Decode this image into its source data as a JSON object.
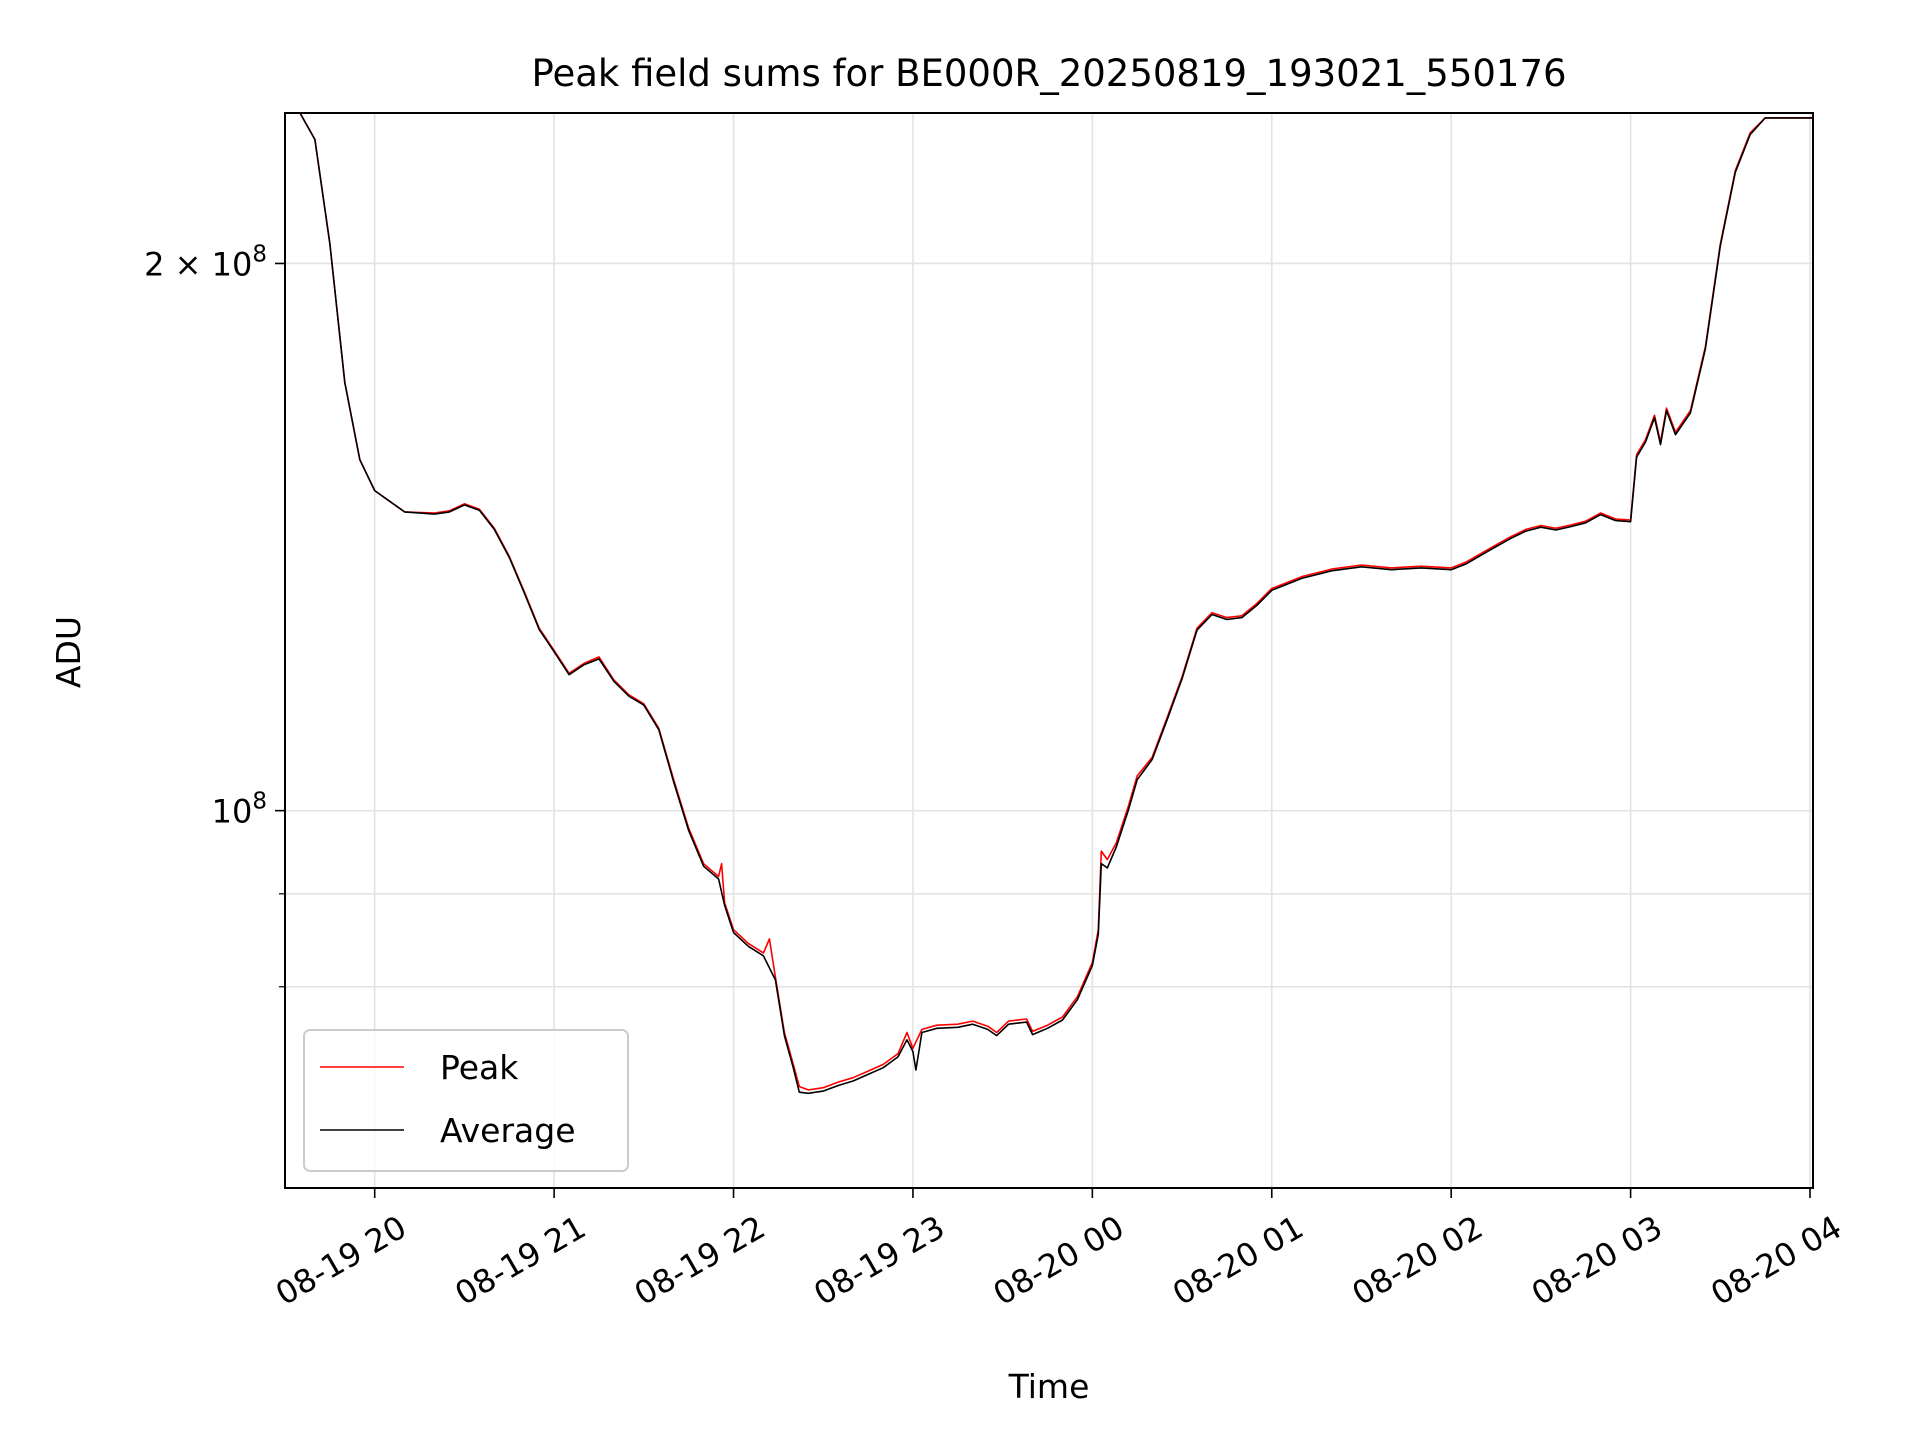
{
  "chart_data": {
    "type": "line",
    "title": "Peak field sums for BE000R_20250819_193021_550176",
    "xlabel": "Time",
    "ylabel": "ADU",
    "yscale": "log",
    "ylim": [
      62000000,
      242000000
    ],
    "xlim": [
      "2025-08-19 19:30",
      "2025-08-20 04:01"
    ],
    "grid": true,
    "legend_position": "lower-left",
    "x_ticks": [
      "08-19 20",
      "08-19 21",
      "08-19 22",
      "08-19 23",
      "08-20 00",
      "08-20 01",
      "08-20 02",
      "08-20 03",
      "08-20 04"
    ],
    "y_ticks": [
      {
        "value": 100000000,
        "base": "10",
        "exp": "8"
      },
      {
        "value": 200000000,
        "mantissa": "2 × ",
        "base": "10",
        "exp": "8"
      }
    ],
    "y_minor_gridlines": [
      80000000,
      90000000
    ],
    "series": [
      {
        "name": "Peak",
        "color": "#ff0000",
        "points": [
          [
            "2025-08-19 19:30",
            242000000
          ],
          [
            "2025-08-19 19:35",
            242000000
          ],
          [
            "2025-08-19 19:40",
            234000000
          ],
          [
            "2025-08-19 19:45",
            205000000
          ],
          [
            "2025-08-19 19:50",
            172000000
          ],
          [
            "2025-08-19 19:55",
            156000000
          ],
          [
            "2025-08-19 20:00",
            150000000
          ],
          [
            "2025-08-19 20:10",
            146000000
          ],
          [
            "2025-08-19 20:20",
            145800000
          ],
          [
            "2025-08-19 20:25",
            146200000
          ],
          [
            "2025-08-19 20:30",
            147500000
          ],
          [
            "2025-08-19 20:35",
            146500000
          ],
          [
            "2025-08-19 20:40",
            143000000
          ],
          [
            "2025-08-19 20:45",
            138000000
          ],
          [
            "2025-08-19 20:50",
            132000000
          ],
          [
            "2025-08-19 20:55",
            126000000
          ],
          [
            "2025-08-19 21:00",
            122500000
          ],
          [
            "2025-08-19 21:05",
            119000000
          ],
          [
            "2025-08-19 21:10",
            120500000
          ],
          [
            "2025-08-19 21:15",
            121500000
          ],
          [
            "2025-08-19 21:20",
            118000000
          ],
          [
            "2025-08-19 21:25",
            115800000
          ],
          [
            "2025-08-19 21:30",
            114500000
          ],
          [
            "2025-08-19 21:35",
            111000000
          ],
          [
            "2025-08-19 21:40",
            104000000
          ],
          [
            "2025-08-19 21:45",
            97800000
          ],
          [
            "2025-08-19 21:50",
            93500000
          ],
          [
            "2025-08-19 21:55",
            92000000
          ],
          [
            "2025-08-19 21:56",
            93500000
          ],
          [
            "2025-08-19 21:57",
            89000000
          ],
          [
            "2025-08-19 22:00",
            86000000
          ],
          [
            "2025-08-19 22:05",
            84500000
          ],
          [
            "2025-08-19 22:10",
            83500000
          ],
          [
            "2025-08-19 22:12",
            85000000
          ],
          [
            "2025-08-19 22:14",
            81000000
          ],
          [
            "2025-08-19 22:17",
            75500000
          ],
          [
            "2025-08-19 22:20",
            72500000
          ],
          [
            "2025-08-19 22:22",
            70500000
          ],
          [
            "2025-08-19 22:25",
            70200000
          ],
          [
            "2025-08-19 22:30",
            70400000
          ],
          [
            "2025-08-19 22:35",
            70900000
          ],
          [
            "2025-08-19 22:40",
            71300000
          ],
          [
            "2025-08-19 22:45",
            71900000
          ],
          [
            "2025-08-19 22:50",
            72500000
          ],
          [
            "2025-08-19 22:55",
            73500000
          ],
          [
            "2025-08-19 22:58",
            75500000
          ],
          [
            "2025-08-19 23:00",
            74000000
          ],
          [
            "2025-08-19 23:03",
            75800000
          ],
          [
            "2025-08-19 23:08",
            76200000
          ],
          [
            "2025-08-19 23:15",
            76300000
          ],
          [
            "2025-08-19 23:20",
            76600000
          ],
          [
            "2025-08-19 23:25",
            76100000
          ],
          [
            "2025-08-19 23:28",
            75500000
          ],
          [
            "2025-08-19 23:32",
            76600000
          ],
          [
            "2025-08-19 23:38",
            76800000
          ],
          [
            "2025-08-19 23:40",
            75600000
          ],
          [
            "2025-08-19 23:45",
            76200000
          ],
          [
            "2025-08-19 23:50",
            77000000
          ],
          [
            "2025-08-19 23:55",
            79000000
          ],
          [
            "2025-08-20 00:00",
            82500000
          ],
          [
            "2025-08-20 00:02",
            86000000
          ],
          [
            "2025-08-20 00:03",
            95000000
          ],
          [
            "2025-08-20 00:05",
            94000000
          ],
          [
            "2025-08-20 00:08",
            96000000
          ],
          [
            "2025-08-20 00:12",
            100500000
          ],
          [
            "2025-08-20 00:15",
            104500000
          ],
          [
            "2025-08-20 00:20",
            107000000
          ],
          [
            "2025-08-20 00:25",
            112500000
          ],
          [
            "2025-08-20 00:30",
            118500000
          ],
          [
            "2025-08-20 00:35",
            126000000
          ],
          [
            "2025-08-20 00:40",
            128500000
          ],
          [
            "2025-08-20 00:45",
            127700000
          ],
          [
            "2025-08-20 00:50",
            128000000
          ],
          [
            "2025-08-20 00:55",
            130000000
          ],
          [
            "2025-08-20 01:00",
            132500000
          ],
          [
            "2025-08-20 01:10",
            134500000
          ],
          [
            "2025-08-20 01:20",
            135800000
          ],
          [
            "2025-08-20 01:30",
            136500000
          ],
          [
            "2025-08-20 01:40",
            136000000
          ],
          [
            "2025-08-20 01:50",
            136300000
          ],
          [
            "2025-08-20 02:00",
            136000000
          ],
          [
            "2025-08-20 02:05",
            137000000
          ],
          [
            "2025-08-20 02:10",
            138500000
          ],
          [
            "2025-08-20 02:15",
            140000000
          ],
          [
            "2025-08-20 02:20",
            141500000
          ],
          [
            "2025-08-20 02:25",
            142800000
          ],
          [
            "2025-08-20 02:30",
            143500000
          ],
          [
            "2025-08-20 02:35",
            143000000
          ],
          [
            "2025-08-20 02:40",
            143600000
          ],
          [
            "2025-08-20 02:45",
            144300000
          ],
          [
            "2025-08-20 02:50",
            145800000
          ],
          [
            "2025-08-20 02:55",
            144700000
          ],
          [
            "2025-08-20 03:00",
            144500000
          ],
          [
            "2025-08-20 03:02",
            157000000
          ],
          [
            "2025-08-20 03:05",
            160000000
          ],
          [
            "2025-08-20 03:08",
            165000000
          ],
          [
            "2025-08-20 03:10",
            159500000
          ],
          [
            "2025-08-20 03:12",
            166500000
          ],
          [
            "2025-08-20 03:15",
            161500000
          ],
          [
            "2025-08-20 03:20",
            166000000
          ],
          [
            "2025-08-20 03:25",
            180000000
          ],
          [
            "2025-08-20 03:30",
            205000000
          ],
          [
            "2025-08-20 03:35",
            225000000
          ],
          [
            "2025-08-20 03:40",
            236000000
          ],
          [
            "2025-08-20 03:45",
            240500000
          ],
          [
            "2025-08-20 04:01",
            240500000
          ]
        ]
      },
      {
        "name": "Average",
        "color": "#000000",
        "points": [
          [
            "2025-08-19 19:30",
            242000000
          ],
          [
            "2025-08-19 19:35",
            242000000
          ],
          [
            "2025-08-19 19:40",
            234000000
          ],
          [
            "2025-08-19 19:45",
            205000000
          ],
          [
            "2025-08-19 19:50",
            172000000
          ],
          [
            "2025-08-19 19:55",
            156000000
          ],
          [
            "2025-08-19 20:00",
            150000000
          ],
          [
            "2025-08-19 20:10",
            146000000
          ],
          [
            "2025-08-19 20:20",
            145600000
          ],
          [
            "2025-08-19 20:25",
            146000000
          ],
          [
            "2025-08-19 20:30",
            147300000
          ],
          [
            "2025-08-19 20:35",
            146300000
          ],
          [
            "2025-08-19 20:40",
            142800000
          ],
          [
            "2025-08-19 20:45",
            137800000
          ],
          [
            "2025-08-19 20:50",
            131800000
          ],
          [
            "2025-08-19 20:55",
            125800000
          ],
          [
            "2025-08-19 21:00",
            122300000
          ],
          [
            "2025-08-19 21:05",
            118800000
          ],
          [
            "2025-08-19 21:10",
            120300000
          ],
          [
            "2025-08-19 21:15",
            121200000
          ],
          [
            "2025-08-19 21:20",
            117800000
          ],
          [
            "2025-08-19 21:25",
            115600000
          ],
          [
            "2025-08-19 21:30",
            114300000
          ],
          [
            "2025-08-19 21:35",
            110800000
          ],
          [
            "2025-08-19 21:40",
            103700000
          ],
          [
            "2025-08-19 21:45",
            97500000
          ],
          [
            "2025-08-19 21:50",
            93200000
          ],
          [
            "2025-08-19 21:55",
            91700000
          ],
          [
            "2025-08-19 21:57",
            88700000
          ],
          [
            "2025-08-19 22:00",
            85700000
          ],
          [
            "2025-08-19 22:05",
            84200000
          ],
          [
            "2025-08-19 22:10",
            83200000
          ],
          [
            "2025-08-19 22:14",
            80700000
          ],
          [
            "2025-08-19 22:17",
            75200000
          ],
          [
            "2025-08-19 22:20",
            72200000
          ],
          [
            "2025-08-19 22:22",
            70000000
          ],
          [
            "2025-08-19 22:25",
            69900000
          ],
          [
            "2025-08-19 22:30",
            70100000
          ],
          [
            "2025-08-19 22:35",
            70600000
          ],
          [
            "2025-08-19 22:40",
            71000000
          ],
          [
            "2025-08-19 22:45",
            71600000
          ],
          [
            "2025-08-19 22:50",
            72200000
          ],
          [
            "2025-08-19 22:55",
            73200000
          ],
          [
            "2025-08-19 22:58",
            74800000
          ],
          [
            "2025-08-19 23:00",
            73700000
          ],
          [
            "2025-08-19 23:01",
            72000000
          ],
          [
            "2025-08-19 23:03",
            75500000
          ],
          [
            "2025-08-19 23:08",
            75900000
          ],
          [
            "2025-08-19 23:15",
            76000000
          ],
          [
            "2025-08-19 23:20",
            76300000
          ],
          [
            "2025-08-19 23:25",
            75800000
          ],
          [
            "2025-08-19 23:28",
            75200000
          ],
          [
            "2025-08-19 23:32",
            76300000
          ],
          [
            "2025-08-19 23:38",
            76500000
          ],
          [
            "2025-08-19 23:40",
            75300000
          ],
          [
            "2025-08-19 23:45",
            75900000
          ],
          [
            "2025-08-19 23:50",
            76700000
          ],
          [
            "2025-08-19 23:55",
            78700000
          ],
          [
            "2025-08-20 00:00",
            82200000
          ],
          [
            "2025-08-20 00:02",
            85500000
          ],
          [
            "2025-08-20 00:03",
            93500000
          ],
          [
            "2025-08-20 00:05",
            93000000
          ],
          [
            "2025-08-20 00:08",
            95500000
          ],
          [
            "2025-08-20 00:12",
            100000000
          ],
          [
            "2025-08-20 00:15",
            104000000
          ],
          [
            "2025-08-20 00:20",
            106700000
          ],
          [
            "2025-08-20 00:25",
            112200000
          ],
          [
            "2025-08-20 00:30",
            118200000
          ],
          [
            "2025-08-20 00:35",
            125700000
          ],
          [
            "2025-08-20 00:40",
            128200000
          ],
          [
            "2025-08-20 00:45",
            127400000
          ],
          [
            "2025-08-20 00:50",
            127700000
          ],
          [
            "2025-08-20 00:55",
            129700000
          ],
          [
            "2025-08-20 01:00",
            132200000
          ],
          [
            "2025-08-20 01:10",
            134200000
          ],
          [
            "2025-08-20 01:20",
            135500000
          ],
          [
            "2025-08-20 01:30",
            136200000
          ],
          [
            "2025-08-20 01:40",
            135700000
          ],
          [
            "2025-08-20 01:50",
            136000000
          ],
          [
            "2025-08-20 02:00",
            135700000
          ],
          [
            "2025-08-20 02:05",
            136700000
          ],
          [
            "2025-08-20 02:10",
            138200000
          ],
          [
            "2025-08-20 02:15",
            139700000
          ],
          [
            "2025-08-20 02:20",
            141200000
          ],
          [
            "2025-08-20 02:25",
            142500000
          ],
          [
            "2025-08-20 02:30",
            143200000
          ],
          [
            "2025-08-20 02:35",
            142700000
          ],
          [
            "2025-08-20 02:40",
            143300000
          ],
          [
            "2025-08-20 02:45",
            144000000
          ],
          [
            "2025-08-20 02:50",
            145500000
          ],
          [
            "2025-08-20 02:55",
            144400000
          ],
          [
            "2025-08-20 03:00",
            144200000
          ],
          [
            "2025-08-20 03:02",
            156500000
          ],
          [
            "2025-08-20 03:05",
            159500000
          ],
          [
            "2025-08-20 03:08",
            164500000
          ],
          [
            "2025-08-20 03:10",
            159000000
          ],
          [
            "2025-08-20 03:12",
            166000000
          ],
          [
            "2025-08-20 03:15",
            161000000
          ],
          [
            "2025-08-20 03:20",
            165500000
          ],
          [
            "2025-08-20 03:25",
            179500000
          ],
          [
            "2025-08-20 03:30",
            204500000
          ],
          [
            "2025-08-20 03:35",
            224500000
          ],
          [
            "2025-08-20 03:40",
            235500000
          ],
          [
            "2025-08-20 03:45",
            240500000
          ],
          [
            "2025-08-20 04:01",
            240500000
          ]
        ]
      }
    ]
  }
}
